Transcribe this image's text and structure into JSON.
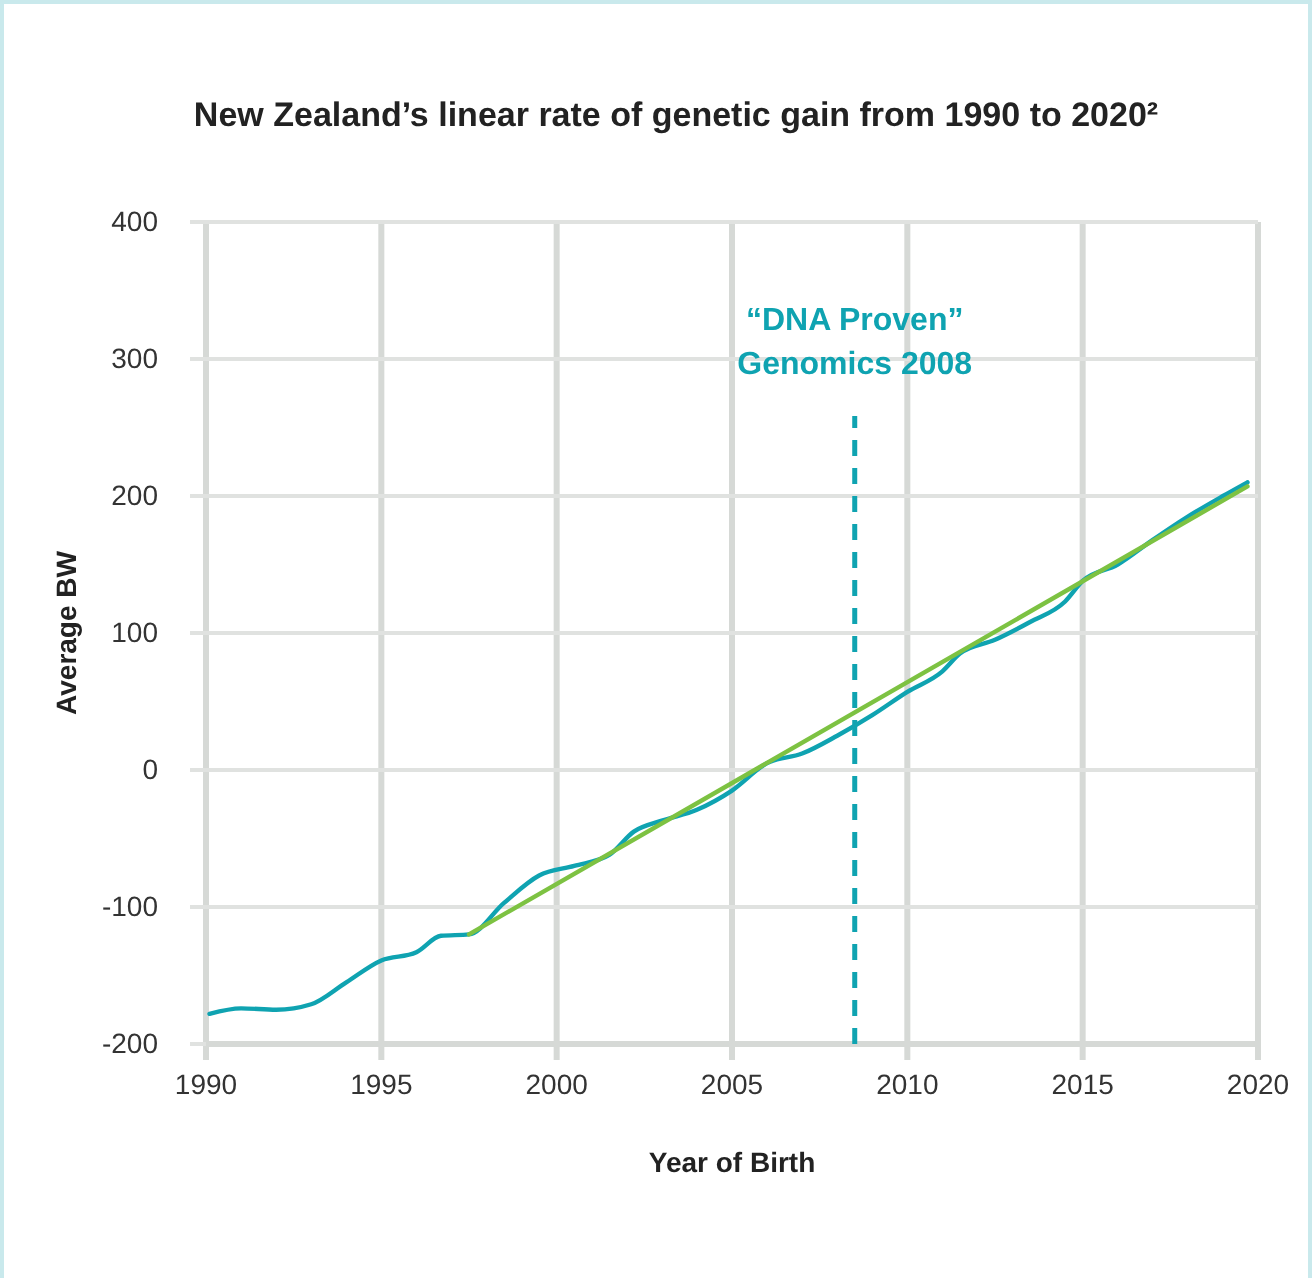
{
  "chart_data": {
    "type": "line",
    "title": "New Zealand’s linear rate of genetic gain from 1990 to 2020²",
    "xlabel": "Year of Birth",
    "ylabel": "Average BW",
    "xlim": [
      1990,
      2020
    ],
    "xticks": [
      1990,
      1995,
      2000,
      2005,
      2010,
      2015,
      2020
    ],
    "ylim": [
      -200,
      400
    ],
    "yticks": [
      -200,
      -100,
      0,
      100,
      200,
      300,
      400
    ],
    "grid": true,
    "series": [
      {
        "color": "#0fa3b1",
        "x": [
          1990.1,
          1991,
          1992,
          1993,
          1994,
          1995,
          1996,
          1996.7,
          1997.5,
          1998.5,
          1999.5,
          2000.5,
          2001.5,
          2002.2,
          2003,
          2004,
          2005,
          2006,
          2007,
          2008,
          2009,
          2010,
          2011,
          2011.5,
          2012.5,
          2013.5,
          2014.5,
          2015,
          2016,
          2017,
          2018,
          2019,
          2019.7
        ],
        "values": [
          -178,
          -174,
          -175,
          -171,
          -155,
          -139,
          -133,
          -121,
          -120,
          -97,
          -77,
          -70,
          -62,
          -45,
          -37,
          -29,
          -15,
          5,
          12,
          25,
          40,
          57,
          72,
          85,
          95,
          108,
          123,
          138,
          150,
          168,
          185,
          200,
          210
        ]
      },
      {
        "color": "#7dc242",
        "x": [
          1997.5,
          2019.7
        ],
        "values": [
          -120,
          207
        ]
      }
    ],
    "ref_lines": [
      {
        "axis": "x",
        "value": 2008.5,
        "label": "“DNA Proven”\nGenomics 2008",
        "color": "#0fa3b1",
        "line_style": "dashed"
      }
    ]
  }
}
